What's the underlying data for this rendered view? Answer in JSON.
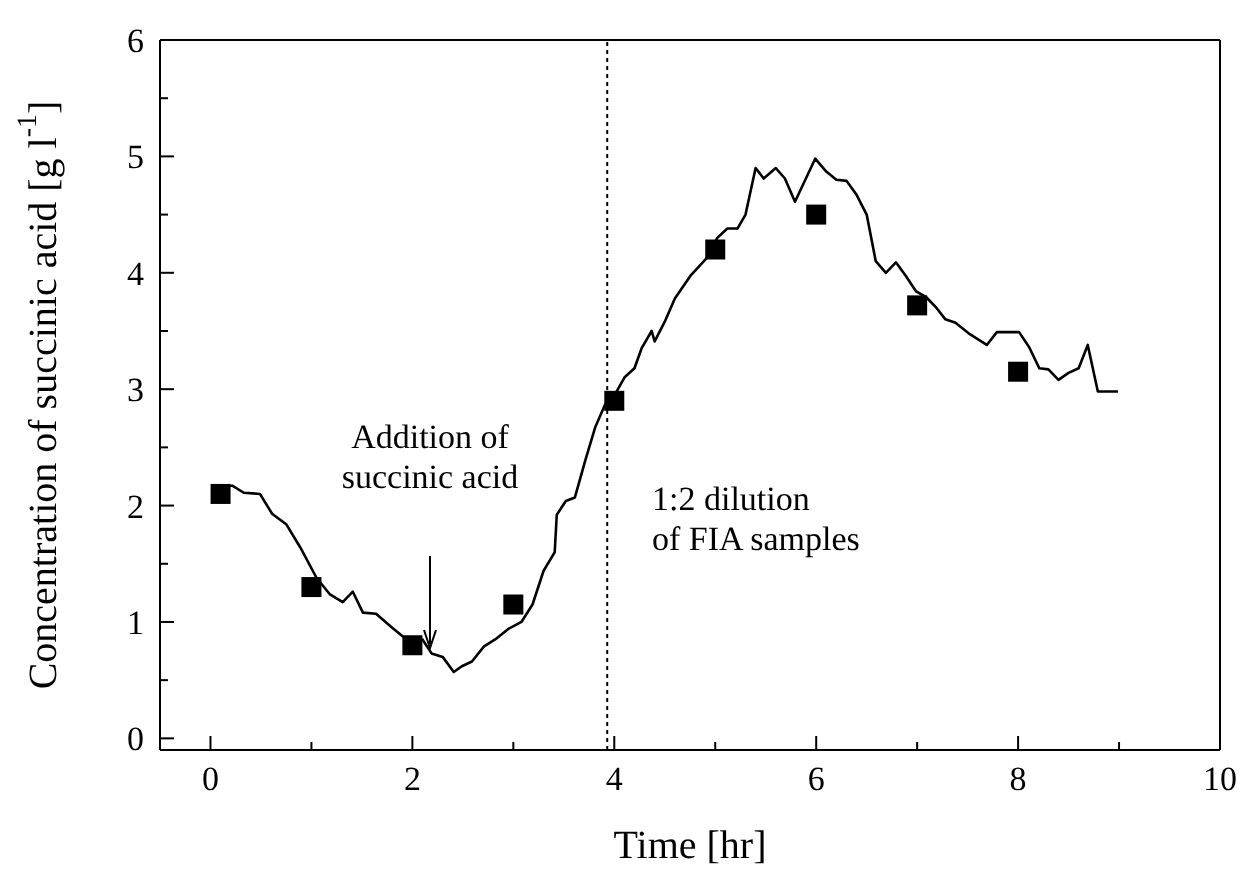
{
  "chart_data": {
    "type": "line",
    "xlabel": "Time [hr]",
    "ylabel": "Concentration of succinic acid [g l$^{-1}$]",
    "xlim": [
      -0.5,
      10
    ],
    "ylim": [
      -0.1,
      6
    ],
    "xticks": [
      0,
      {
        "value": 1,
        "label": null
      },
      2,
      {
        "value": 3,
        "label": null
      },
      4,
      {
        "value": 5,
        "label": null
      },
      6,
      {
        "value": 7,
        "label": null
      },
      8,
      {
        "value": 9,
        "label": null
      },
      10
    ],
    "yticks": [
      0,
      {
        "value": 0.5,
        "label": null
      },
      1,
      {
        "value": 1.5,
        "label": null
      },
      2,
      {
        "value": 2.5,
        "label": null
      },
      3,
      {
        "value": 3.5,
        "label": null
      },
      4,
      {
        "value": 4.5,
        "label": null
      },
      5,
      {
        "value": 5.5,
        "label": null
      },
      6
    ],
    "series": [
      {
        "color": "#000000",
        "marker": "none",
        "x": [
          0.13,
          0.22,
          0.33,
          0.49,
          0.61,
          0.75,
          0.89,
          1.05,
          1.18,
          1.31,
          1.41,
          1.51,
          1.64,
          1.8,
          1.97,
          2.1,
          2.19,
          2.3,
          2.41,
          2.49,
          2.59,
          2.71,
          2.82,
          2.95,
          3.08,
          3.19,
          3.3,
          3.41,
          3.43,
          3.52,
          3.61,
          3.71,
          3.81,
          3.91,
          4.01,
          4.1,
          4.2,
          4.27,
          4.37,
          4.4,
          4.5,
          4.6,
          4.76,
          4.92,
          5.02,
          5.12,
          5.22,
          5.3,
          5.4,
          5.48,
          5.6,
          5.69,
          5.79,
          5.99,
          6.1,
          6.2,
          6.3,
          6.4,
          6.5,
          6.59,
          6.69,
          6.79,
          6.89,
          6.99,
          7.09,
          7.19,
          7.28,
          7.38,
          7.51,
          7.69,
          7.79,
          8.01,
          8.11,
          8.21,
          8.3,
          8.4,
          8.5,
          8.6,
          8.69,
          8.79,
          8.99
        ],
        "values": [
          2.17,
          2.17,
          2.11,
          2.1,
          1.93,
          1.84,
          1.64,
          1.38,
          1.24,
          1.17,
          1.26,
          1.08,
          1.07,
          0.95,
          0.83,
          0.85,
          0.73,
          0.7,
          0.57,
          0.62,
          0.66,
          0.79,
          0.85,
          0.94,
          1.0,
          1.15,
          1.44,
          1.6,
          1.92,
          2.04,
          2.07,
          2.38,
          2.67,
          2.87,
          2.96,
          3.1,
          3.18,
          3.35,
          3.5,
          3.41,
          3.58,
          3.78,
          3.98,
          4.13,
          4.3,
          4.38,
          4.38,
          4.5,
          4.9,
          4.81,
          4.9,
          4.81,
          4.61,
          4.98,
          4.87,
          4.8,
          4.79,
          4.67,
          4.5,
          4.1,
          4.0,
          4.09,
          3.97,
          3.84,
          3.79,
          3.7,
          3.6,
          3.57,
          3.48,
          3.38,
          3.49,
          3.49,
          3.36,
          3.18,
          3.17,
          3.08,
          3.14,
          3.18,
          3.38,
          2.98,
          2.98
        ]
      },
      {
        "type": "scatter",
        "color": "#000000",
        "marker": "square",
        "x": [
          0.1,
          1,
          2,
          3,
          4,
          5,
          6,
          7,
          8
        ],
        "values": [
          2.1,
          1.3,
          0.8,
          1.15,
          2.9,
          4.2,
          4.5,
          3.72,
          3.15
        ]
      }
    ],
    "ref_lines": [
      {
        "axis": "x",
        "value": 3.93,
        "line_style": "dotted",
        "color": "#000000"
      }
    ],
    "annotations": [
      "Addition of\nsuccinic acid",
      "1:2 dilution\nof FIA samples"
    ]
  }
}
